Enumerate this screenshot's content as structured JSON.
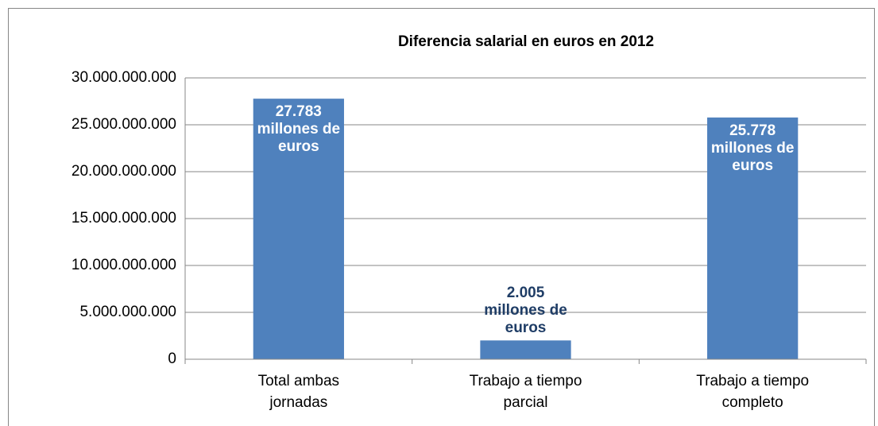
{
  "chart_data": {
    "type": "bar",
    "title": "Diferencia salarial en euros en 2012",
    "categories": [
      "Total ambas jornadas",
      "Trabajo a tiempo parcial",
      "Trabajo a tiempo completo"
    ],
    "values": [
      27783000000,
      2005000000,
      25778000000
    ],
    "value_labels": [
      "27.783 millones de euros",
      "2.005 millones de euros",
      "25.778 millones de euros"
    ],
    "color": "#4f81bd",
    "ylim": [
      0,
      30000000000
    ],
    "yticks": [
      0,
      {
        "value": 5000000000,
        "label": "5.000.000.000"
      },
      {
        "value": 10000000000,
        "label": "10.000.000.000"
      },
      {
        "value": 15000000000,
        "label": "15.000.000.000"
      },
      {
        "value": 20000000000,
        "label": "20.000.000.000"
      },
      {
        "value": 25000000000,
        "label": "25.000.000.000"
      },
      {
        "value": 30000000000,
        "label": "30.000.000.000"
      }
    ],
    "grid": true
  }
}
